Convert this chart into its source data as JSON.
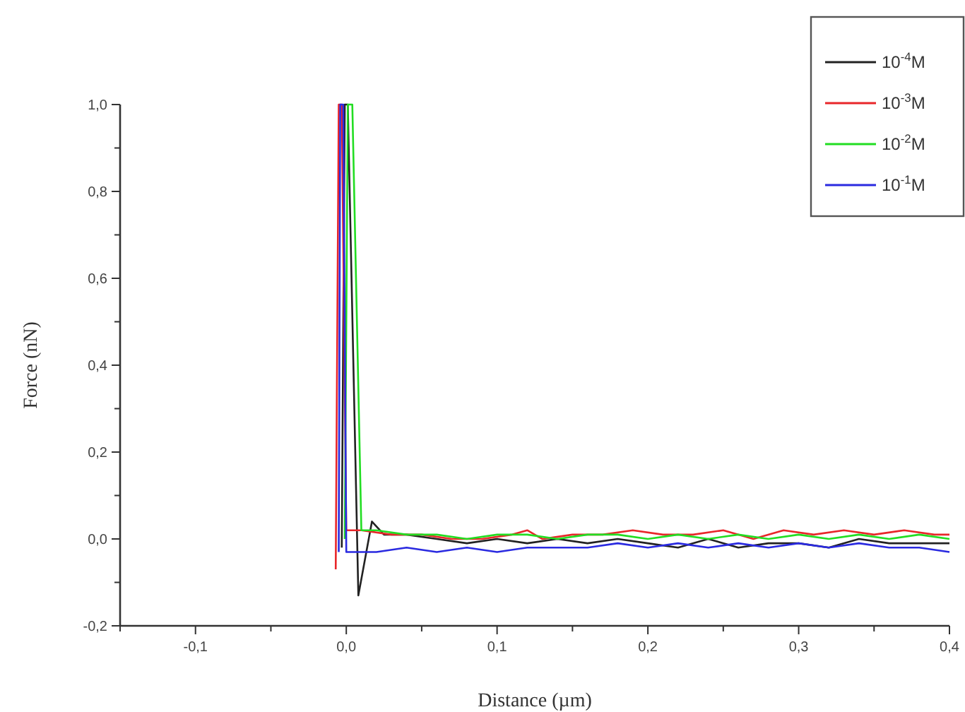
{
  "chart_data": {
    "type": "line",
    "xlabel": "Distance (µm)",
    "ylabel": "Force (nN)",
    "xlim": [
      -0.15,
      0.4
    ],
    "ylim": [
      -0.2,
      1.0
    ],
    "xticks": [
      {
        "value": -0.15,
        "label": null
      },
      {
        "value": -0.1,
        "label": "-0,1"
      },
      {
        "value": -0.05,
        "label": null
      },
      {
        "value": 0,
        "label": "0,0"
      },
      {
        "value": 0.05,
        "label": null
      },
      {
        "value": 0.1,
        "label": "0,1"
      },
      {
        "value": 0.15,
        "label": null
      },
      {
        "value": 0.2,
        "label": "0,2"
      },
      {
        "value": 0.25,
        "label": null
      },
      {
        "value": 0.3,
        "label": "0,3"
      },
      {
        "value": 0.35,
        "label": null
      },
      {
        "value": 0.4,
        "label": "0,4"
      }
    ],
    "yticks": [
      {
        "value": -0.2,
        "label": "-0,2"
      },
      {
        "value": -0.1,
        "label": null
      },
      {
        "value": 0,
        "label": "0,0"
      },
      {
        "value": 0.1,
        "label": null
      },
      {
        "value": 0.2,
        "label": "0,2"
      },
      {
        "value": 0.3,
        "label": null
      },
      {
        "value": 0.4,
        "label": "0,4"
      },
      {
        "value": 0.5,
        "label": null
      },
      {
        "value": 0.6,
        "label": "0,6"
      },
      {
        "value": 0.7,
        "label": null
      },
      {
        "value": 0.8,
        "label": "0,8"
      },
      {
        "value": 0.9,
        "label": null
      },
      {
        "value": 1.0,
        "label": "1,0"
      }
    ],
    "grid": false,
    "legend": "top right",
    "marker": "none",
    "line_style": "solid",
    "series": [
      {
        "name": "10$^{-4}$M",
        "color": "#222222",
        "x": [
          -0.003,
          -0.001,
          0.001,
          0.008,
          0.017,
          0.025,
          0.04,
          0.06,
          0.08,
          0.1,
          0.12,
          0.14,
          0.16,
          0.18,
          0.2,
          0.22,
          0.24,
          0.26,
          0.28,
          0.3,
          0.32,
          0.34,
          0.36,
          0.38,
          0.4
        ],
        "values": [
          -0.02,
          1.0,
          1.0,
          -0.13,
          0.04,
          0.01,
          0.01,
          0.0,
          -0.01,
          0.0,
          -0.01,
          0.0,
          -0.01,
          0.0,
          -0.01,
          -0.02,
          0.0,
          -0.02,
          -0.01,
          -0.01,
          -0.02,
          0.0,
          -0.01,
          -0.01,
          -0.01
        ]
      },
      {
        "name": "10$^{-3}$M",
        "color": "#e8262a",
        "x": [
          -0.007,
          -0.005,
          -0.003,
          0.0,
          0.01,
          0.03,
          0.05,
          0.07,
          0.09,
          0.11,
          0.12,
          0.13,
          0.15,
          0.17,
          0.19,
          0.21,
          0.23,
          0.25,
          0.27,
          0.29,
          0.31,
          0.33,
          0.35,
          0.37,
          0.39,
          0.4
        ],
        "values": [
          -0.07,
          1.0,
          1.0,
          0.02,
          0.02,
          0.01,
          0.01,
          0.0,
          0.0,
          0.01,
          0.02,
          0.0,
          0.01,
          0.01,
          0.02,
          0.01,
          0.01,
          0.02,
          0.0,
          0.02,
          0.01,
          0.02,
          0.01,
          0.02,
          0.01,
          0.01
        ]
      },
      {
        "name": "10$^{-2}$M",
        "color": "#22dd22",
        "x": [
          -0.001,
          0.001,
          0.004,
          0.01,
          0.02,
          0.04,
          0.06,
          0.08,
          0.1,
          0.12,
          0.14,
          0.16,
          0.18,
          0.2,
          0.22,
          0.24,
          0.26,
          0.28,
          0.3,
          0.32,
          0.34,
          0.36,
          0.38,
          0.4
        ],
        "values": [
          0.0,
          1.0,
          1.0,
          0.02,
          0.02,
          0.01,
          0.01,
          0.0,
          0.01,
          0.01,
          0.0,
          0.01,
          0.01,
          0.0,
          0.01,
          0.0,
          0.01,
          0.0,
          0.01,
          0.0,
          0.01,
          0.0,
          0.01,
          0.0
        ]
      },
      {
        "name": "10$^{-1}$M",
        "color": "#2a2ae0",
        "x": [
          -0.005,
          -0.004,
          -0.002,
          0.0,
          0.02,
          0.04,
          0.06,
          0.08,
          0.1,
          0.12,
          0.14,
          0.16,
          0.18,
          0.2,
          0.22,
          0.24,
          0.26,
          0.28,
          0.3,
          0.32,
          0.34,
          0.36,
          0.38,
          0.4
        ],
        "values": [
          -0.03,
          1.0,
          1.0,
          -0.03,
          -0.03,
          -0.02,
          -0.03,
          -0.02,
          -0.03,
          -0.02,
          -0.02,
          -0.02,
          -0.01,
          -0.02,
          -0.01,
          -0.02,
          -0.01,
          -0.02,
          -0.01,
          -0.02,
          -0.01,
          -0.02,
          -0.02,
          -0.03
        ]
      }
    ]
  }
}
